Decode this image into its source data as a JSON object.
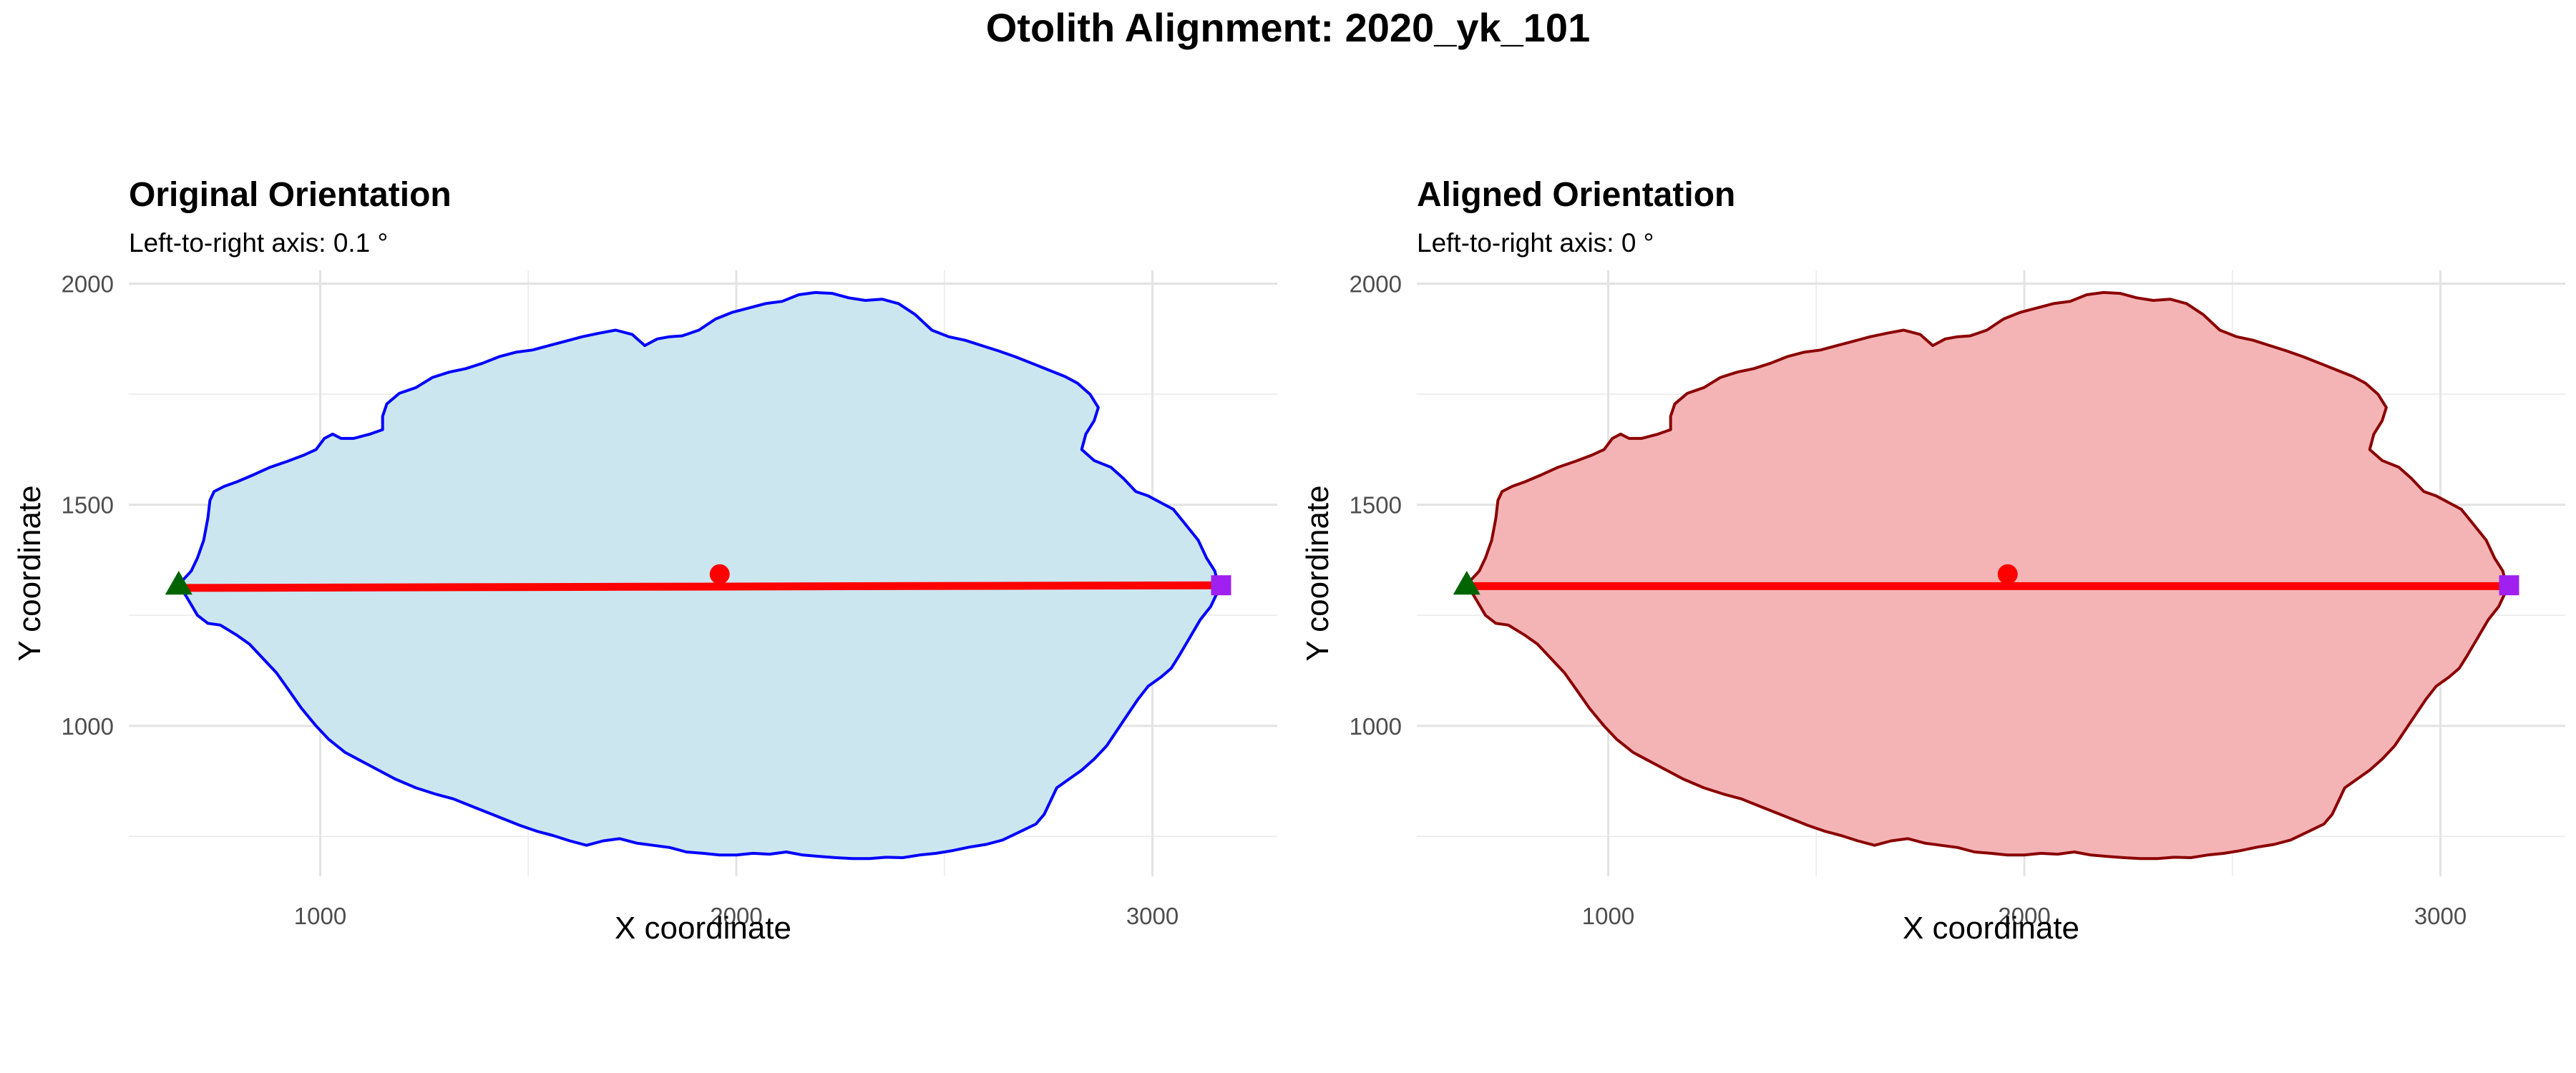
{
  "figure": {
    "title": "Otolith Alignment: 2020_yk_101"
  },
  "chart_data": [
    {
      "type": "scatter",
      "title": "Original Orientation",
      "subtitle": "Left-to-right axis: 0.1 °",
      "xlabel": "X coordinate",
      "ylabel": "Y coordinate",
      "xlim": [
        540,
        3300
      ],
      "ylim": [
        660,
        2030
      ],
      "xticks": [
        1000,
        2000,
        3000
      ],
      "yticks": [
        1000,
        1500,
        2000
      ],
      "grid": true,
      "legend": "none",
      "fill_color": "#CCE6EF",
      "outline_color": "#0000FF",
      "outline": [
        [
          660,
          1320
        ],
        [
          680,
          1290
        ],
        [
          705,
          1250
        ],
        [
          730,
          1232
        ],
        [
          760,
          1228
        ],
        [
          800,
          1205
        ],
        [
          830,
          1185
        ],
        [
          860,
          1155
        ],
        [
          895,
          1120
        ],
        [
          925,
          1080
        ],
        [
          955,
          1040
        ],
        [
          990,
          1000
        ],
        [
          1020,
          970
        ],
        [
          1060,
          940
        ],
        [
          1100,
          920
        ],
        [
          1140,
          900
        ],
        [
          1180,
          880
        ],
        [
          1230,
          860
        ],
        [
          1280,
          845
        ],
        [
          1320,
          835
        ],
        [
          1360,
          820
        ],
        [
          1400,
          805
        ],
        [
          1440,
          790
        ],
        [
          1480,
          775
        ],
        [
          1520,
          762
        ],
        [
          1560,
          752
        ],
        [
          1600,
          740
        ],
        [
          1640,
          730
        ],
        [
          1680,
          740
        ],
        [
          1720,
          745
        ],
        [
          1760,
          735
        ],
        [
          1800,
          730
        ],
        [
          1840,
          725
        ],
        [
          1880,
          715
        ],
        [
          1920,
          712
        ],
        [
          1960,
          708
        ],
        [
          2000,
          708
        ],
        [
          2040,
          712
        ],
        [
          2080,
          710
        ],
        [
          2120,
          715
        ],
        [
          2160,
          708
        ],
        [
          2200,
          705
        ],
        [
          2240,
          702
        ],
        [
          2280,
          700
        ],
        [
          2320,
          700
        ],
        [
          2360,
          703
        ],
        [
          2400,
          702
        ],
        [
          2440,
          708
        ],
        [
          2480,
          712
        ],
        [
          2520,
          718
        ],
        [
          2560,
          726
        ],
        [
          2600,
          732
        ],
        [
          2640,
          742
        ],
        [
          2680,
          760
        ],
        [
          2720,
          778
        ],
        [
          2740,
          800
        ],
        [
          2755,
          830
        ],
        [
          2770,
          860
        ],
        [
          2800,
          880
        ],
        [
          2830,
          900
        ],
        [
          2860,
          925
        ],
        [
          2890,
          955
        ],
        [
          2915,
          990
        ],
        [
          2940,
          1025
        ],
        [
          2965,
          1060
        ],
        [
          2990,
          1090
        ],
        [
          3020,
          1110
        ],
        [
          3045,
          1130
        ],
        [
          3065,
          1160
        ],
        [
          3090,
          1200
        ],
        [
          3115,
          1240
        ],
        [
          3140,
          1270
        ],
        [
          3160,
          1310
        ],
        [
          3150,
          1350
        ],
        [
          3130,
          1380
        ],
        [
          3110,
          1420
        ],
        [
          3080,
          1455
        ],
        [
          3050,
          1490
        ],
        [
          3020,
          1505
        ],
        [
          2990,
          1520
        ],
        [
          2960,
          1530
        ],
        [
          2930,
          1560
        ],
        [
          2900,
          1585
        ],
        [
          2860,
          1600
        ],
        [
          2830,
          1625
        ],
        [
          2840,
          1660
        ],
        [
          2860,
          1690
        ],
        [
          2870,
          1720
        ],
        [
          2850,
          1750
        ],
        [
          2820,
          1775
        ],
        [
          2790,
          1790
        ],
        [
          2750,
          1805
        ],
        [
          2710,
          1820
        ],
        [
          2670,
          1835
        ],
        [
          2630,
          1848
        ],
        [
          2590,
          1860
        ],
        [
          2550,
          1872
        ],
        [
          2510,
          1880
        ],
        [
          2470,
          1895
        ],
        [
          2430,
          1930
        ],
        [
          2390,
          1955
        ],
        [
          2350,
          1965
        ],
        [
          2310,
          1962
        ],
        [
          2270,
          1968
        ],
        [
          2230,
          1978
        ],
        [
          2190,
          1980
        ],
        [
          2150,
          1975
        ],
        [
          2110,
          1960
        ],
        [
          2070,
          1955
        ],
        [
          2030,
          1945
        ],
        [
          1990,
          1935
        ],
        [
          1950,
          1920
        ],
        [
          1910,
          1895
        ],
        [
          1870,
          1882
        ],
        [
          1840,
          1880
        ],
        [
          1810,
          1875
        ],
        [
          1780,
          1860
        ],
        [
          1750,
          1885
        ],
        [
          1710,
          1895
        ],
        [
          1670,
          1888
        ],
        [
          1630,
          1880
        ],
        [
          1590,
          1870
        ],
        [
          1550,
          1860
        ],
        [
          1510,
          1850
        ],
        [
          1470,
          1845
        ],
        [
          1430,
          1835
        ],
        [
          1390,
          1820
        ],
        [
          1350,
          1808
        ],
        [
          1310,
          1800
        ],
        [
          1270,
          1788
        ],
        [
          1230,
          1765
        ],
        [
          1190,
          1752
        ],
        [
          1160,
          1728
        ],
        [
          1150,
          1700
        ],
        [
          1150,
          1670
        ],
        [
          1120,
          1660
        ],
        [
          1080,
          1650
        ],
        [
          1050,
          1650
        ],
        [
          1030,
          1660
        ],
        [
          1010,
          1650
        ],
        [
          990,
          1625
        ],
        [
          960,
          1612
        ],
        [
          920,
          1598
        ],
        [
          880,
          1585
        ],
        [
          840,
          1568
        ],
        [
          800,
          1552
        ],
        [
          770,
          1542
        ],
        [
          745,
          1530
        ],
        [
          735,
          1510
        ],
        [
          730,
          1470
        ],
        [
          720,
          1420
        ],
        [
          705,
          1380
        ],
        [
          690,
          1350
        ],
        [
          675,
          1335
        ]
      ],
      "axis_line": {
        "from": [
          660,
          1312
        ],
        "to": [
          3165,
          1318
        ],
        "color": "#FF0000"
      },
      "points": [
        {
          "name": "centroid",
          "x": 1960,
          "y": 1343,
          "color": "#FF0000",
          "shape": "circle"
        },
        {
          "name": "left-endpoint",
          "x": 660,
          "y": 1320,
          "color": "#006400",
          "shape": "triangle"
        },
        {
          "name": "right-endpoint",
          "x": 3165,
          "y": 1318,
          "color": "#A020F0",
          "shape": "square"
        }
      ]
    },
    {
      "type": "scatter",
      "title": "Aligned Orientation",
      "subtitle": "Left-to-right axis: 0 °",
      "xlabel": "X coordinate",
      "ylabel": "Y coordinate",
      "xlim": [
        540,
        3300
      ],
      "ylim": [
        660,
        2030
      ],
      "xticks": [
        1000,
        2000,
        3000
      ],
      "yticks": [
        1000,
        1500,
        2000
      ],
      "grid": true,
      "legend": "none",
      "fill_color": "#F4B4B6",
      "outline_color": "#8B0000",
      "outline": [
        [
          660,
          1320
        ],
        [
          680,
          1290
        ],
        [
          705,
          1250
        ],
        [
          730,
          1232
        ],
        [
          760,
          1228
        ],
        [
          800,
          1205
        ],
        [
          830,
          1185
        ],
        [
          860,
          1155
        ],
        [
          895,
          1120
        ],
        [
          925,
          1080
        ],
        [
          955,
          1040
        ],
        [
          990,
          1000
        ],
        [
          1020,
          970
        ],
        [
          1060,
          940
        ],
        [
          1100,
          920
        ],
        [
          1140,
          900
        ],
        [
          1180,
          880
        ],
        [
          1230,
          860
        ],
        [
          1280,
          845
        ],
        [
          1320,
          835
        ],
        [
          1360,
          820
        ],
        [
          1400,
          805
        ],
        [
          1440,
          790
        ],
        [
          1480,
          775
        ],
        [
          1520,
          762
        ],
        [
          1560,
          752
        ],
        [
          1600,
          740
        ],
        [
          1640,
          730
        ],
        [
          1680,
          740
        ],
        [
          1720,
          745
        ],
        [
          1760,
          735
        ],
        [
          1800,
          730
        ],
        [
          1840,
          725
        ],
        [
          1880,
          715
        ],
        [
          1920,
          712
        ],
        [
          1960,
          708
        ],
        [
          2000,
          708
        ],
        [
          2040,
          712
        ],
        [
          2080,
          710
        ],
        [
          2120,
          715
        ],
        [
          2160,
          708
        ],
        [
          2200,
          705
        ],
        [
          2240,
          702
        ],
        [
          2280,
          700
        ],
        [
          2320,
          700
        ],
        [
          2360,
          703
        ],
        [
          2400,
          702
        ],
        [
          2440,
          708
        ],
        [
          2480,
          712
        ],
        [
          2520,
          718
        ],
        [
          2560,
          726
        ],
        [
          2600,
          732
        ],
        [
          2640,
          742
        ],
        [
          2680,
          760
        ],
        [
          2720,
          778
        ],
        [
          2740,
          800
        ],
        [
          2755,
          830
        ],
        [
          2770,
          860
        ],
        [
          2800,
          880
        ],
        [
          2830,
          900
        ],
        [
          2860,
          925
        ],
        [
          2890,
          955
        ],
        [
          2915,
          990
        ],
        [
          2940,
          1025
        ],
        [
          2965,
          1060
        ],
        [
          2990,
          1090
        ],
        [
          3020,
          1110
        ],
        [
          3045,
          1130
        ],
        [
          3065,
          1160
        ],
        [
          3090,
          1200
        ],
        [
          3115,
          1240
        ],
        [
          3140,
          1270
        ],
        [
          3160,
          1310
        ],
        [
          3150,
          1350
        ],
        [
          3130,
          1380
        ],
        [
          3110,
          1420
        ],
        [
          3080,
          1455
        ],
        [
          3050,
          1490
        ],
        [
          3020,
          1505
        ],
        [
          2990,
          1520
        ],
        [
          2960,
          1530
        ],
        [
          2930,
          1560
        ],
        [
          2900,
          1585
        ],
        [
          2860,
          1600
        ],
        [
          2830,
          1625
        ],
        [
          2840,
          1660
        ],
        [
          2860,
          1690
        ],
        [
          2870,
          1720
        ],
        [
          2850,
          1750
        ],
        [
          2820,
          1775
        ],
        [
          2790,
          1790
        ],
        [
          2750,
          1805
        ],
        [
          2710,
          1820
        ],
        [
          2670,
          1835
        ],
        [
          2630,
          1848
        ],
        [
          2590,
          1860
        ],
        [
          2550,
          1872
        ],
        [
          2510,
          1880
        ],
        [
          2470,
          1895
        ],
        [
          2430,
          1930
        ],
        [
          2390,
          1955
        ],
        [
          2350,
          1965
        ],
        [
          2310,
          1962
        ],
        [
          2270,
          1968
        ],
        [
          2230,
          1978
        ],
        [
          2190,
          1980
        ],
        [
          2150,
          1975
        ],
        [
          2110,
          1960
        ],
        [
          2070,
          1955
        ],
        [
          2030,
          1945
        ],
        [
          1990,
          1935
        ],
        [
          1950,
          1920
        ],
        [
          1910,
          1895
        ],
        [
          1870,
          1882
        ],
        [
          1840,
          1880
        ],
        [
          1810,
          1875
        ],
        [
          1780,
          1860
        ],
        [
          1750,
          1885
        ],
        [
          1710,
          1895
        ],
        [
          1670,
          1888
        ],
        [
          1630,
          1880
        ],
        [
          1590,
          1870
        ],
        [
          1550,
          1860
        ],
        [
          1510,
          1850
        ],
        [
          1470,
          1845
        ],
        [
          1430,
          1835
        ],
        [
          1390,
          1820
        ],
        [
          1350,
          1808
        ],
        [
          1310,
          1800
        ],
        [
          1270,
          1788
        ],
        [
          1230,
          1765
        ],
        [
          1190,
          1752
        ],
        [
          1160,
          1728
        ],
        [
          1150,
          1700
        ],
        [
          1150,
          1670
        ],
        [
          1120,
          1660
        ],
        [
          1080,
          1650
        ],
        [
          1050,
          1650
        ],
        [
          1030,
          1660
        ],
        [
          1010,
          1650
        ],
        [
          990,
          1625
        ],
        [
          960,
          1612
        ],
        [
          920,
          1598
        ],
        [
          880,
          1585
        ],
        [
          840,
          1568
        ],
        [
          800,
          1552
        ],
        [
          770,
          1542
        ],
        [
          745,
          1530
        ],
        [
          735,
          1510
        ],
        [
          730,
          1470
        ],
        [
          720,
          1420
        ],
        [
          705,
          1380
        ],
        [
          690,
          1350
        ],
        [
          675,
          1335
        ]
      ],
      "axis_line": {
        "from": [
          660,
          1316
        ],
        "to": [
          3165,
          1316
        ],
        "color": "#FF0000"
      },
      "points": [
        {
          "name": "centroid",
          "x": 1960,
          "y": 1343,
          "color": "#FF0000",
          "shape": "circle"
        },
        {
          "name": "left-endpoint",
          "x": 660,
          "y": 1320,
          "color": "#006400",
          "shape": "triangle"
        },
        {
          "name": "right-endpoint",
          "x": 3165,
          "y": 1318,
          "color": "#A020F0",
          "shape": "square"
        }
      ]
    }
  ]
}
